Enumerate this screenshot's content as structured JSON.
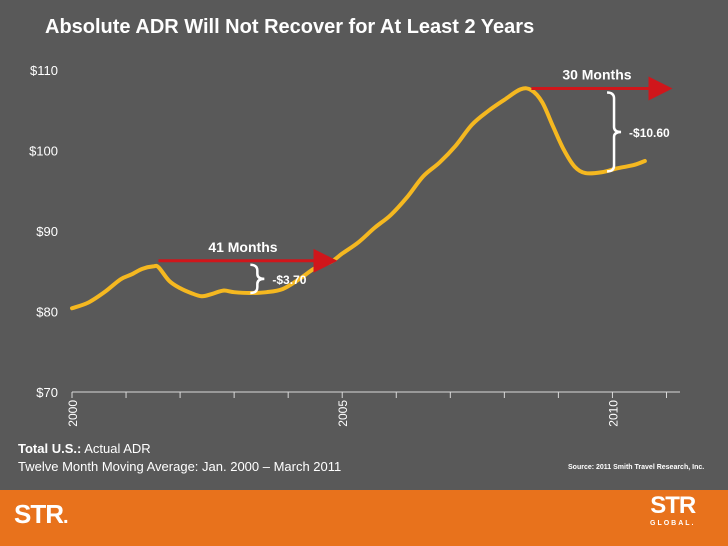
{
  "title": "Absolute ADR Will Not Recover for At Least 2 Years",
  "chart_data": {
    "type": "line",
    "ylim": [
      70,
      110
    ],
    "xlim": [
      2000.0,
      2011.25
    ],
    "y_ticks": [
      {
        "value": 110,
        "label": "$110"
      },
      {
        "value": 100,
        "label": "$100"
      },
      {
        "value": 90,
        "label": "$90"
      },
      {
        "value": 80,
        "label": "$80"
      },
      {
        "value": 70,
        "label": "$70"
      }
    ],
    "x_tick_labels": [
      {
        "value": 2000,
        "label": "2000"
      },
      {
        "value": 2005,
        "label": "2005"
      },
      {
        "value": 2010,
        "label": "2010"
      }
    ],
    "series": [
      {
        "name": "Twelve Month Moving Average ADR",
        "color": "#f5b820",
        "points": [
          [
            2000.0,
            80.4
          ],
          [
            2000.3,
            81.1
          ],
          [
            2000.6,
            82.4
          ],
          [
            2000.9,
            84.0
          ],
          [
            2001.1,
            84.6
          ],
          [
            2001.3,
            85.3
          ],
          [
            2001.5,
            85.6
          ],
          [
            2001.6,
            85.5
          ],
          [
            2001.8,
            83.8
          ],
          [
            2002.0,
            82.9
          ],
          [
            2002.2,
            82.3
          ],
          [
            2002.4,
            81.9
          ],
          [
            2002.6,
            82.2
          ],
          [
            2002.8,
            82.6
          ],
          [
            2003.0,
            82.4
          ],
          [
            2003.3,
            82.3
          ],
          [
            2003.6,
            82.4
          ],
          [
            2003.9,
            82.8
          ],
          [
            2004.2,
            84.0
          ],
          [
            2004.5,
            85.4
          ],
          [
            2004.8,
            86.2
          ],
          [
            2005.0,
            87.2
          ],
          [
            2005.3,
            88.6
          ],
          [
            2005.6,
            90.4
          ],
          [
            2005.9,
            92.0
          ],
          [
            2006.2,
            94.2
          ],
          [
            2006.5,
            96.8
          ],
          [
            2006.8,
            98.5
          ],
          [
            2007.1,
            100.6
          ],
          [
            2007.4,
            103.2
          ],
          [
            2007.7,
            104.9
          ],
          [
            2008.0,
            106.3
          ],
          [
            2008.3,
            107.6
          ],
          [
            2008.5,
            107.5
          ],
          [
            2008.7,
            106.0
          ],
          [
            2008.9,
            103.0
          ],
          [
            2009.1,
            100.1
          ],
          [
            2009.3,
            98.0
          ],
          [
            2009.5,
            97.2
          ],
          [
            2009.8,
            97.3
          ],
          [
            2010.1,
            97.8
          ],
          [
            2010.4,
            98.2
          ],
          [
            2010.6,
            98.7
          ]
        ]
      }
    ],
    "annotations": [
      {
        "kind": "arrow",
        "label": "41 Months",
        "x_start": 2001.6,
        "x_end": 2004.8,
        "y": 86.3
      },
      {
        "kind": "brace",
        "label": "-$3.70",
        "x": 2003.3,
        "y_top": 85.8,
        "y_bottom": 82.3
      },
      {
        "kind": "arrow",
        "label": "30 Months",
        "x_start": 2008.5,
        "x_end": 2011.0,
        "y": 107.7
      },
      {
        "kind": "brace",
        "label": "-$10.60",
        "x": 2009.9,
        "y_top": 107.2,
        "y_bottom": 97.4
      }
    ]
  },
  "footer": {
    "label_bold": "Total U.S.:",
    "label_rest": " Actual ADR",
    "subtitle": "Twelve Month Moving Average: Jan. 2000 – March 2011",
    "source": "Source: 2011 Smith Travel Research, Inc."
  },
  "logos": {
    "left": "STR",
    "left_mark": ".",
    "right_big": "STR",
    "right_small": "GLOBAL."
  },
  "colors": {
    "background": "#595959",
    "line": "#f5b820",
    "arrow": "#d0161b",
    "footer_bar": "#e8721c"
  }
}
